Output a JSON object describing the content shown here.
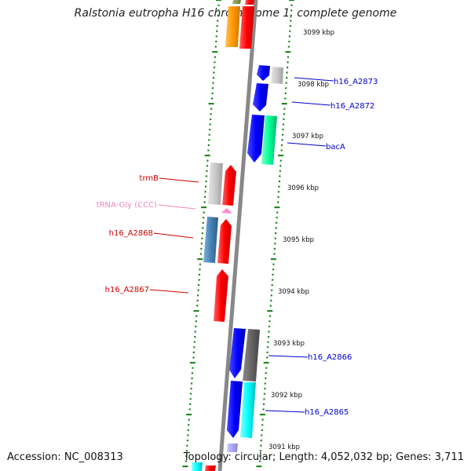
{
  "title": "Ralstonia eutropha H16 chromosome 1, complete genome",
  "footer": {
    "accession": "Accession: NC_008313",
    "summary": "Topology: circular; Length: 4,052,032 bp; Genes: 3,711"
  },
  "ticks": [
    {
      "label": "3099 kbp",
      "kbp": 3099
    },
    {
      "label": "3098 kbp",
      "kbp": 3098
    },
    {
      "label": "3097 kbp",
      "kbp": 3097
    },
    {
      "label": "3096 kbp",
      "kbp": 3096
    },
    {
      "label": "3095 kbp",
      "kbp": 3095
    },
    {
      "label": "3094 kbp",
      "kbp": 3094
    },
    {
      "label": "3093 kbp",
      "kbp": 3093
    },
    {
      "label": "3092 kbp",
      "kbp": 3092
    },
    {
      "label": "3091 kbp",
      "kbp": 3091
    }
  ],
  "gene_labels": [
    {
      "name": "h16_A2873",
      "color": "#0000cc",
      "side": "right"
    },
    {
      "name": "h16_A2872",
      "color": "#0000cc",
      "side": "right"
    },
    {
      "name": "bacA",
      "color": "#0000cc",
      "side": "right"
    },
    {
      "name": "h16_A2866",
      "color": "#0000cc",
      "side": "right"
    },
    {
      "name": "h16_A2865",
      "color": "#0000cc",
      "side": "right"
    },
    {
      "name": "trmB",
      "color": "#cc0000",
      "side": "left"
    },
    {
      "name": "tRNA-Gly (CCC)",
      "color": "#ee88bb",
      "side": "left"
    },
    {
      "name": "h16_A2868",
      "color": "#cc0000",
      "side": "left"
    },
    {
      "name": "h16_A2867",
      "color": "#cc0000",
      "side": "left"
    }
  ],
  "colors": {
    "backbone": "#888888",
    "ticks": "#228822",
    "forward_cds": "#ff0000",
    "reverse_cds": "#0000ff",
    "trna": "#ff88cc"
  }
}
